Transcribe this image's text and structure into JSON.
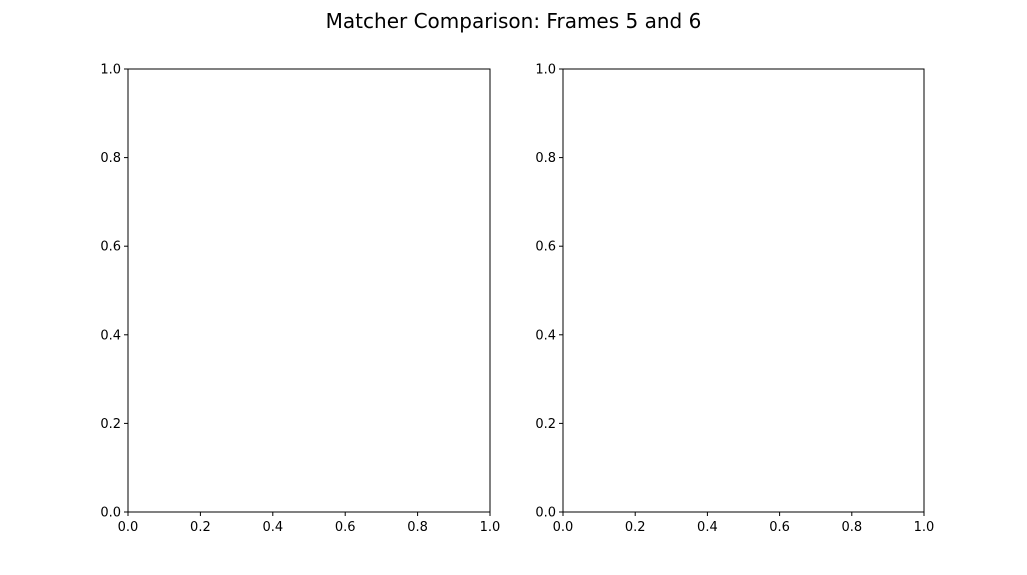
{
  "title": "Matcher Comparison: Frames 5 and 6",
  "colors": {
    "axes": "#000000",
    "background": "#ffffff"
  },
  "chart_data": [
    {
      "type": "scatter",
      "title": "",
      "xlabel": "",
      "ylabel": "",
      "xlim": [
        0,
        1
      ],
      "ylim": [
        0,
        1
      ],
      "xticks": [
        0.0,
        0.2,
        0.4,
        0.6,
        0.8,
        1.0
      ],
      "yticks": [
        0.0,
        0.2,
        0.4,
        0.6,
        0.8,
        1.0
      ],
      "xtick_labels": [
        "0.0",
        "0.2",
        "0.4",
        "0.6",
        "0.8",
        "1.0"
      ],
      "ytick_labels": [
        "0.0",
        "0.2",
        "0.4",
        "0.6",
        "0.8",
        "1.0"
      ],
      "grid": false,
      "series": []
    },
    {
      "type": "scatter",
      "title": "",
      "xlabel": "",
      "ylabel": "",
      "xlim": [
        0,
        1
      ],
      "ylim": [
        0,
        1
      ],
      "xticks": [
        0.0,
        0.2,
        0.4,
        0.6,
        0.8,
        1.0
      ],
      "yticks": [
        0.0,
        0.2,
        0.4,
        0.6,
        0.8,
        1.0
      ],
      "xtick_labels": [
        "0.0",
        "0.2",
        "0.4",
        "0.6",
        "0.8",
        "1.0"
      ],
      "ytick_labels": [
        "0.0",
        "0.2",
        "0.4",
        "0.6",
        "0.8",
        "1.0"
      ],
      "grid": false,
      "series": []
    }
  ]
}
